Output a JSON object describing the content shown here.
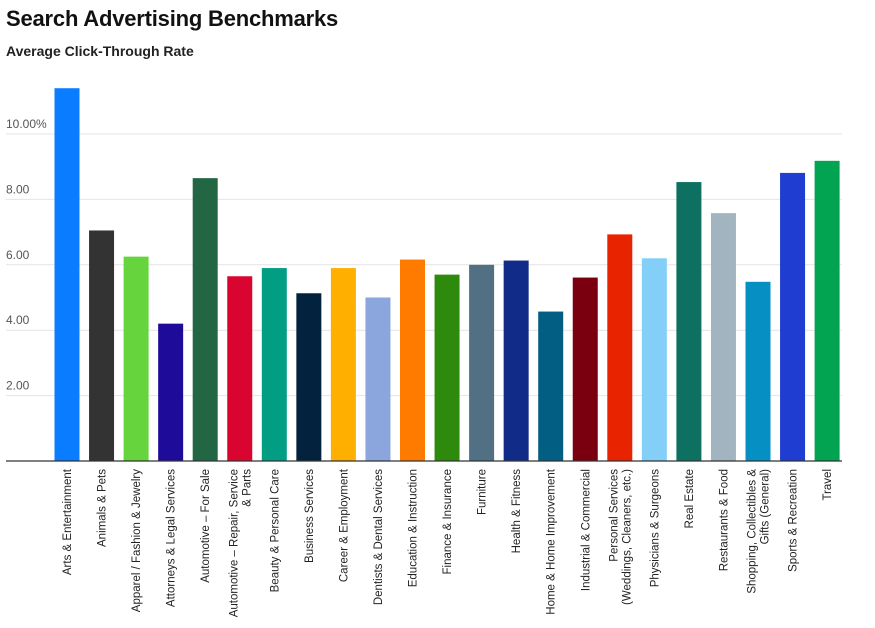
{
  "chart_data": {
    "type": "bar",
    "title": "Search Advertising Benchmarks",
    "subtitle": "Average Click-Through Rate",
    "xlabel": "",
    "ylabel": "",
    "ylim": [
      0,
      11.5
    ],
    "yticks": [
      {
        "value": 2,
        "label": "2.00"
      },
      {
        "value": 4,
        "label": "4.00"
      },
      {
        "value": 6,
        "label": "6.00"
      },
      {
        "value": 8,
        "label": "8.00"
      },
      {
        "value": 10,
        "label": "10.00%"
      }
    ],
    "grid": true,
    "legend": "none",
    "categories": [
      [
        "Arts & Entertainment"
      ],
      [
        "Animals & Pets"
      ],
      [
        "Apparel / Fashion & Jewelry"
      ],
      [
        "Attorneys & Legal Services"
      ],
      [
        "Automotive – For Sale"
      ],
      [
        "Automotive – Repair, Service",
        "& Parts"
      ],
      [
        "Beauty & Personal Care"
      ],
      [
        "Business Services"
      ],
      [
        "Career & Employment"
      ],
      [
        "Dentists & Dental Services"
      ],
      [
        "Education & Instruction"
      ],
      [
        "Finance & Insurance"
      ],
      [
        "Furniture"
      ],
      [
        "Health & Fitness"
      ],
      [
        "Home & Home Improvement"
      ],
      [
        "Industrial & Commercial"
      ],
      [
        "Personal Services",
        "(Weddings, Cleaners, etc.)"
      ],
      [
        "Physicians & Surgeons"
      ],
      [
        "Real Estate"
      ],
      [
        "Restaurants & Food"
      ],
      [
        "Shopping, Collectibles &",
        "Gifts (General)"
      ],
      [
        "Sports & Recreation"
      ],
      [
        "Travel"
      ]
    ],
    "values": [
      11.4,
      7.05,
      6.25,
      4.2,
      8.65,
      5.65,
      5.9,
      5.13,
      5.9,
      5.0,
      6.16,
      5.7,
      6.0,
      6.13,
      4.57,
      5.61,
      6.93,
      6.2,
      8.53,
      7.58,
      5.48,
      8.81,
      9.18
    ],
    "colors": [
      "#0a7cff",
      "#333333",
      "#66d43c",
      "#1f0b99",
      "#226644",
      "#d90530",
      "#029e84",
      "#03223d",
      "#ffaf00",
      "#8aa6dc",
      "#ff7b00",
      "#2e8a0d",
      "#517084",
      "#112b88",
      "#025e82",
      "#7a0010",
      "#e82300",
      "#84cff7",
      "#0d7060",
      "#a1b4bf",
      "#058fc3",
      "#1f3ed1",
      "#02a351"
    ]
  }
}
